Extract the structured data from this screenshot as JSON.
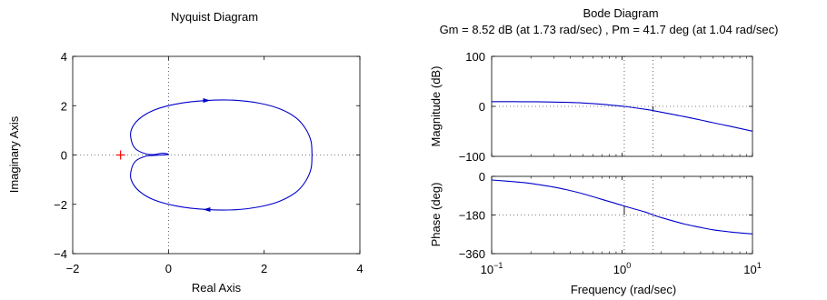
{
  "colors": {
    "curve": "#0000cc",
    "critical_point": "#ff0000",
    "axes": "#000000"
  },
  "chart_data": [
    {
      "type": "line",
      "panel": "nyquist",
      "title": "Nyquist Diagram",
      "xlabel": "Real Axis",
      "ylabel": "Imaginary Axis",
      "xlim": [
        -2,
        4
      ],
      "ylim": [
        -4,
        4
      ],
      "xticks": [
        "−2",
        "0",
        "2",
        "4"
      ],
      "yticks": [
        "−4",
        "−2",
        "0",
        "2",
        "4"
      ],
      "grid": "dotted lines at x=0 and y=0",
      "critical_point": {
        "x": -1,
        "y": 0,
        "marker": "+"
      },
      "series": [
        {
          "points": [
            [
              3.0,
              0.0
            ],
            [
              2.98,
              0.55
            ],
            [
              2.87,
              1.05
            ],
            [
              2.67,
              1.5
            ],
            [
              2.33,
              1.87
            ],
            [
              1.9,
              2.1
            ],
            [
              1.4,
              2.22
            ],
            [
              0.8,
              2.21
            ],
            [
              0.2,
              2.08
            ],
            [
              -0.3,
              1.82
            ],
            [
              -0.62,
              1.45
            ],
            [
              -0.78,
              1.0
            ],
            [
              -0.77,
              0.55
            ],
            [
              -0.67,
              0.22
            ],
            [
              -0.46,
              0.04
            ],
            [
              -0.3,
              0.02
            ],
            [
              -0.12,
              0.07
            ],
            [
              0.0,
              0.03
            ],
            [
              -0.12,
              0.0
            ],
            [
              -0.3,
              -0.02
            ],
            [
              -0.46,
              -0.04
            ],
            [
              -0.67,
              -0.22
            ],
            [
              -0.77,
              -0.55
            ],
            [
              -0.78,
              -1.0
            ],
            [
              -0.62,
              -1.45
            ],
            [
              -0.3,
              -1.82
            ],
            [
              0.2,
              -2.08
            ],
            [
              0.8,
              -2.21
            ],
            [
              1.4,
              -2.22
            ],
            [
              1.9,
              -2.1
            ],
            [
              2.33,
              -1.87
            ],
            [
              2.67,
              -1.5
            ],
            [
              2.87,
              -1.05
            ],
            [
              2.98,
              -0.55
            ],
            [
              3.0,
              0.0
            ]
          ]
        }
      ]
    },
    {
      "type": "line",
      "panel": "bode-magnitude",
      "title": "Bode Diagram",
      "subtitle": "Gm = 8.52 dB (at 1.73 rad/sec) ,  Pm = 41.7 deg (at 1.04 rad/sec)",
      "ylabel": "Magnitude (dB)",
      "xscale": "log",
      "xlim": [
        0.1,
        10
      ],
      "ylim": [
        -100,
        100
      ],
      "yticks": [
        "100",
        "0",
        "−100"
      ],
      "grid": "dotted line at 0 dB; dotted verticals at 1.04 and 1.73 rad/sec",
      "series": [
        {
          "x": [
            0.1,
            0.15,
            0.2,
            0.3,
            0.4,
            0.5,
            0.7,
            1.0,
            1.04,
            1.5,
            1.73,
            2.0,
            3.0,
            4.0,
            5.0,
            7.0,
            10.0
          ],
          "y": [
            9.5,
            9.4,
            9.2,
            8.6,
            7.8,
            6.8,
            4.2,
            0.4,
            0.0,
            -5.8,
            -8.5,
            -11.6,
            -20.5,
            -27.3,
            -32.8,
            -40.8,
            -49.7
          ]
        }
      ],
      "vlines": [
        1.04,
        1.73
      ]
    },
    {
      "type": "line",
      "panel": "bode-phase",
      "xlabel": "Frequency  (rad/sec)",
      "ylabel": "Phase (deg)",
      "xscale": "log",
      "xlim": [
        0.1,
        10
      ],
      "ylim": [
        -360,
        0
      ],
      "yticks": [
        "0",
        "−180",
        "−360"
      ],
      "xticks": [
        "10",
        "10",
        "10"
      ],
      "xtick_exponents": [
        "−1",
        "0",
        "1"
      ],
      "grid": "dotted line at −180 deg; dotted verticals at 1.04 and 1.73 rad/sec",
      "series": [
        {
          "x": [
            0.1,
            0.15,
            0.2,
            0.3,
            0.4,
            0.5,
            0.7,
            1.0,
            1.04,
            1.5,
            1.73,
            2.0,
            3.0,
            4.0,
            5.0,
            7.0,
            10.0
          ],
          "y": [
            -17,
            -25,
            -33,
            -50,
            -66,
            -81,
            -107,
            -135,
            -138.3,
            -166,
            -180,
            -192,
            -222,
            -238,
            -249,
            -260,
            -268
          ]
        }
      ],
      "vlines": [
        1.04,
        1.73
      ]
    }
  ]
}
